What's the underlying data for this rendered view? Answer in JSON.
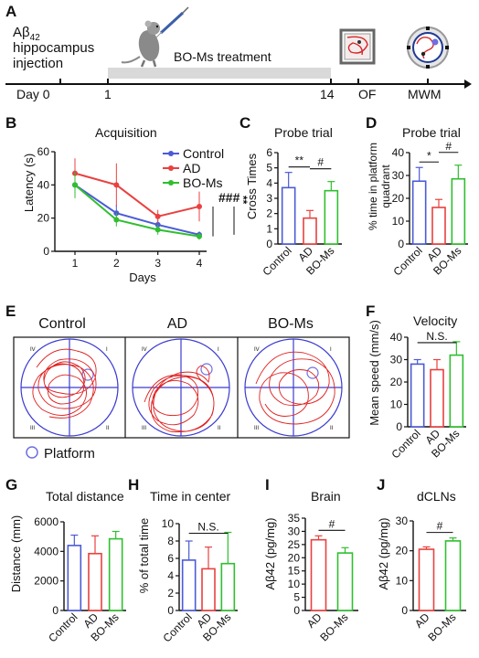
{
  "timeline": {
    "panel_label": "A",
    "injection_line1": "Aβ",
    "injection_sub": "42",
    "injection_line2": "hippocampus",
    "injection_line3": "injection",
    "treatment_label": "BO-Ms treatment",
    "ticks": [
      "Day 0",
      "1",
      "14",
      "OF",
      "MWM"
    ],
    "colors": {
      "bar": "#d9d9d9",
      "path": "#d62728",
      "maze_ring": "#1f3a93"
    }
  },
  "chart_data": [
    {
      "id": "B",
      "type": "line",
      "panel_label": "B",
      "title": "Acquisition",
      "xlabel": "Days",
      "ylabel": "Latency (s)",
      "x": [
        1,
        2,
        3,
        4
      ],
      "ylim": [
        0,
        60
      ],
      "yticks": [
        0,
        20,
        40,
        60
      ],
      "series": [
        {
          "name": "Control",
          "color": "#4b5bd6",
          "values": [
            40,
            23,
            16,
            10
          ],
          "errors": [
            6,
            5,
            3,
            2
          ]
        },
        {
          "name": "AD",
          "color": "#e8413f",
          "values": [
            47,
            40,
            21,
            27
          ],
          "errors": [
            9,
            13,
            4,
            9
          ]
        },
        {
          "name": "BO-Ms",
          "color": "#2fbf2f",
          "values": [
            40,
            19,
            13,
            9
          ],
          "errors": [
            8,
            4,
            3,
            2
          ]
        }
      ],
      "annotations": [
        "###",
        "**"
      ],
      "legend_position": "top-right"
    },
    {
      "id": "C",
      "type": "bar",
      "panel_label": "C",
      "title": "Probe trial",
      "ylabel": "Cross Times",
      "categories": [
        "Control",
        "AD",
        "BO-Ms"
      ],
      "values": [
        3.7,
        1.7,
        3.5
      ],
      "errors": [
        1.0,
        0.5,
        0.6
      ],
      "colors": [
        "#4b5bd6",
        "#e8413f",
        "#2fbf2f"
      ],
      "ylim": [
        0,
        6
      ],
      "yticks": [
        0,
        1,
        2,
        3,
        4,
        5,
        6
      ],
      "significance": [
        {
          "from": 0,
          "to": 1,
          "label": "**"
        },
        {
          "from": 1,
          "to": 2,
          "label": "#"
        }
      ]
    },
    {
      "id": "D",
      "type": "bar",
      "panel_label": "D",
      "title": "Probe trial",
      "ylabel_lines": [
        "% time in platform",
        "quadrant"
      ],
      "categories": [
        "Control",
        "AD",
        "BO-Ms"
      ],
      "values": [
        27.5,
        16,
        28.5
      ],
      "errors": [
        6,
        3.5,
        6
      ],
      "colors": [
        "#4b5bd6",
        "#e8413f",
        "#2fbf2f"
      ],
      "ylim": [
        0,
        40
      ],
      "yticks": [
        0,
        10,
        20,
        30,
        40
      ],
      "significance": [
        {
          "from": 0,
          "to": 1,
          "label": "*"
        },
        {
          "from": 1,
          "to": 2,
          "label": "#"
        }
      ]
    },
    {
      "id": "F",
      "type": "bar",
      "panel_label": "F",
      "title": "Velocity",
      "ylabel": "Mean speed (mm/s)",
      "categories": [
        "Control",
        "AD",
        "BO-Ms"
      ],
      "values": [
        28,
        25.5,
        32
      ],
      "errors": [
        2,
        4.5,
        6
      ],
      "colors": [
        "#4b5bd6",
        "#e8413f",
        "#2fbf2f"
      ],
      "ylim": [
        0,
        40
      ],
      "yticks": [
        0,
        10,
        20,
        30,
        40
      ],
      "significance": [
        {
          "from": 0,
          "to": 2,
          "label": "N.S."
        }
      ]
    },
    {
      "id": "G",
      "type": "bar",
      "panel_label": "G",
      "title": "Total distance",
      "ylabel": "Distance (mm)",
      "categories": [
        "Control",
        "AD",
        "BO-Ms"
      ],
      "values": [
        4400,
        3850,
        4850
      ],
      "errors": [
        700,
        1200,
        500
      ],
      "colors": [
        "#4b5bd6",
        "#e8413f",
        "#2fbf2f"
      ],
      "ylim": [
        0,
        6000
      ],
      "yticks": [
        0,
        2000,
        4000,
        6000
      ]
    },
    {
      "id": "H",
      "type": "bar",
      "panel_label": "H",
      "title": "Time in center",
      "ylabel": "% of total time",
      "categories": [
        "Control",
        "AD",
        "BO-Ms"
      ],
      "values": [
        5.8,
        4.8,
        5.4
      ],
      "errors": [
        2.2,
        2.5,
        3.6
      ],
      "colors": [
        "#4b5bd6",
        "#e8413f",
        "#2fbf2f"
      ],
      "ylim": [
        0,
        10
      ],
      "yticks": [
        0,
        2,
        4,
        6,
        8,
        10
      ],
      "significance": [
        {
          "from": 0,
          "to": 2,
          "label": "N.S."
        }
      ]
    },
    {
      "id": "I",
      "type": "bar",
      "panel_label": "I",
      "title": "Brain",
      "ylabel": "Aβ42 (pg/mg)",
      "categories": [
        "AD",
        "BO-Ms"
      ],
      "values": [
        26.8,
        21.8
      ],
      "errors": [
        1.5,
        2.0
      ],
      "colors": [
        "#e8413f",
        "#2fbf2f"
      ],
      "ylim": [
        0,
        35
      ],
      "yticks": [
        0,
        5,
        10,
        15,
        20,
        25,
        30,
        35
      ],
      "significance": [
        {
          "from": 0,
          "to": 1,
          "label": "#"
        }
      ]
    },
    {
      "id": "J",
      "type": "bar",
      "panel_label": "J",
      "title": "dCLNs",
      "ylabel": "Aβ42 (pg/mg)",
      "categories": [
        "AD",
        "BO-Ms"
      ],
      "values": [
        20.5,
        23.3
      ],
      "errors": [
        0.8,
        1.0
      ],
      "colors": [
        "#e8413f",
        "#2fbf2f"
      ],
      "ylim": [
        0,
        30
      ],
      "yticks": [
        0,
        10,
        20,
        30
      ],
      "significance": [
        {
          "from": 0,
          "to": 1,
          "label": "#"
        }
      ]
    }
  ],
  "track_panel": {
    "panel_label": "E",
    "groups": [
      "Control",
      "AD",
      "BO-Ms"
    ],
    "quadrants": [
      "IV",
      "I",
      "III",
      "II"
    ],
    "legend_label": "Platform",
    "colors": {
      "pool": "#3b3bd0",
      "path": "#e02020",
      "platform": "#6f6fe0"
    }
  }
}
